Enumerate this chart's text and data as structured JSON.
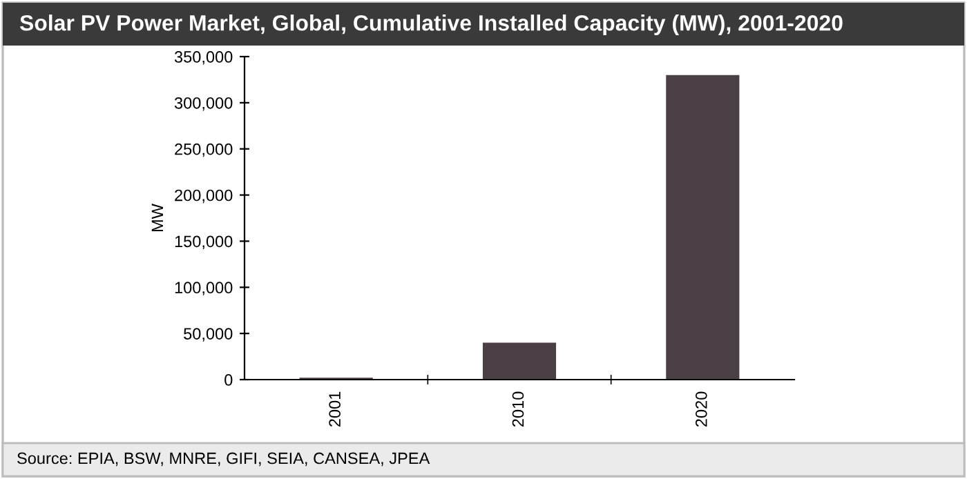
{
  "chart_data": {
    "type": "bar",
    "title": "Solar PV Power Market, Global, Cumulative Installed Capacity (MW), 2001-2020",
    "ylabel": "MW",
    "categories": [
      "2001",
      "2010",
      "2020"
    ],
    "values": [
      2000,
      40000,
      330000
    ],
    "color": "#4a3f45",
    "ylim": [
      0,
      350000
    ],
    "yticks": [
      {
        "value": 0,
        "label": "0"
      },
      {
        "value": 50000,
        "label": "50,000"
      },
      {
        "value": 100000,
        "label": "100,000"
      },
      {
        "value": 150000,
        "label": "150,000"
      },
      {
        "value": 200000,
        "label": "200,000"
      },
      {
        "value": 250000,
        "label": "250,000"
      },
      {
        "value": 300000,
        "label": "300,000"
      },
      {
        "value": 350000,
        "label": "350,000"
      }
    ],
    "grid": false,
    "legend": false,
    "annotations": [
      "Source: EPIA, BSW, MNRE, GIFI, SEIA, CANSEA, JPEA"
    ]
  }
}
